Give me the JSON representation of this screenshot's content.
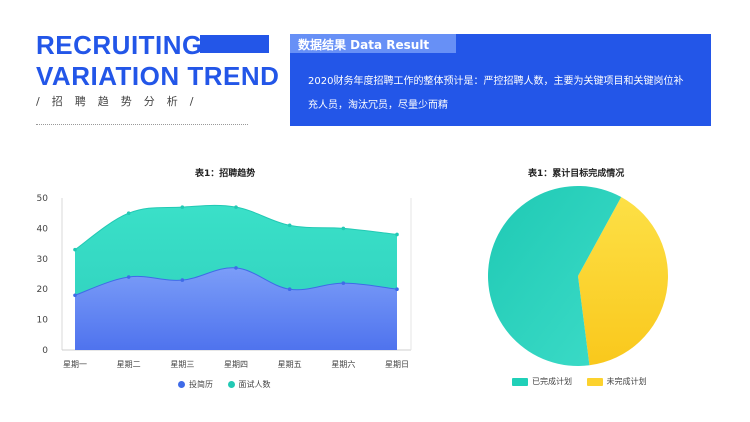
{
  "header": {
    "title_line1": "RECRUITING",
    "title_line2": "VARIATION TREND",
    "subtitle": "/招聘趋势分析/"
  },
  "result": {
    "heading": "数据结果   Data Result",
    "text": "2020财务年度招聘工作的整体预计是：严控招聘人数，主要为关键项目和关键岗位补充人员，淘汰冗员，尽量少而精"
  },
  "colors": {
    "brand_blue": "#2356e8",
    "series_blue": "#5b84f5",
    "series_teal": "#2fd6c0",
    "pie_teal": "#20d0b8",
    "pie_yellow": "#fcd22e"
  },
  "chart_data": [
    {
      "type": "area",
      "title": "表1：招聘趋势",
      "categories": [
        "星期一",
        "星期二",
        "星期三",
        "星期四",
        "星期五",
        "星期六",
        "星期日"
      ],
      "series": [
        {
          "name": "投简历",
          "values": [
            18,
            24,
            23,
            27,
            20,
            22,
            20
          ]
        },
        {
          "name": "面试人数",
          "values": [
            33,
            45,
            47,
            47,
            41,
            40,
            38
          ]
        }
      ],
      "ylim": [
        0,
        50
      ],
      "yticks": [
        0,
        10,
        20,
        30,
        40,
        50
      ],
      "legend": "bottom",
      "grid": false
    },
    {
      "type": "pie",
      "title": "表1：累计目标完成情况",
      "labels": [
        "已完成计划",
        "未完成计划"
      ],
      "values": [
        60,
        40
      ],
      "legend": "bottom"
    }
  ]
}
